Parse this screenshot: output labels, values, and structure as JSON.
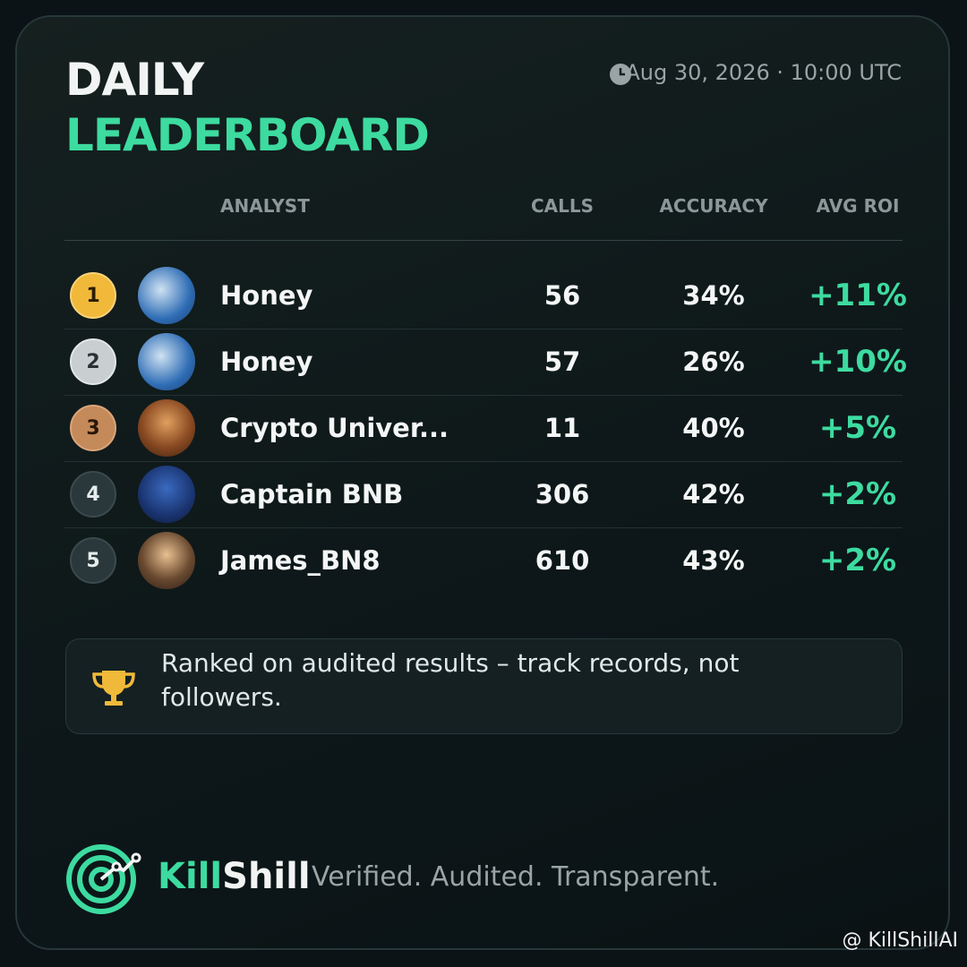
{
  "header": {
    "title_line1": "DAILY",
    "title_line2": "LEADERBOARD",
    "timestamp": "Aug 30, 2026 · 10:00 UTC"
  },
  "table": {
    "columns": [
      "ANALYST",
      "CALLS",
      "ACCURACY",
      "AVG ROI"
    ],
    "rows": [
      [
        "1",
        "Honey",
        "56",
        "34%",
        "+11%"
      ],
      [
        "2",
        "Honey",
        "57",
        "26%",
        "+10%"
      ],
      [
        "3",
        "Crypto Univer...",
        "11",
        "40%",
        "+5%"
      ],
      [
        "4",
        "Captain BNB",
        "306",
        "42%",
        "+2%"
      ],
      [
        "5",
        "James_BN8",
        "610",
        "43%",
        "+2%"
      ]
    ]
  },
  "note": "Ranked on audited results – track records, not followers.",
  "footer": {
    "brand_kill": "Kill",
    "brand_shill": "Shill",
    "tagline": "Verified. Audited. Transparent."
  },
  "watermark": "@ KillShillAI"
}
